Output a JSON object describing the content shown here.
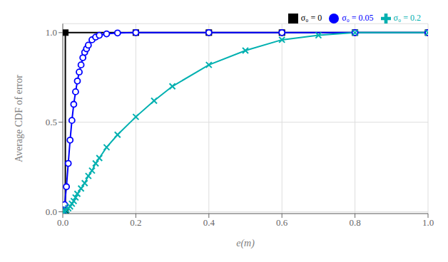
{
  "chart_data": {
    "type": "line",
    "xlabel": "e(m)",
    "ylabel": "Average CDF of error",
    "xlim": [
      0,
      1
    ],
    "ylim": [
      -0.01,
      1.05
    ],
    "xticks": [
      {
        "value": 0,
        "label": "0.0"
      },
      0.2,
      0.4,
      0.6,
      0.8,
      {
        "value": 1.0,
        "label": "1.0"
      }
    ],
    "yticks": [
      {
        "value": 0,
        "label": "0.0"
      },
      0.5,
      {
        "value": 1,
        "label": "1.0"
      }
    ],
    "grid": true,
    "legend": "upper right",
    "series": [
      {
        "name": "σ₀ = 0",
        "color": "#000000",
        "marker": "square",
        "x": [
          0.0,
          0.007,
          0.007,
          0.2,
          0.4,
          0.6,
          0.8,
          1.0
        ],
        "values": [
          0.0,
          0.0,
          1.0,
          1.0,
          1.0,
          1.0,
          1.0,
          1.0
        ]
      },
      {
        "name": "σ₀ = 0.05",
        "color": "#0000ff",
        "marker": "circle",
        "x": [
          0.0,
          0.005,
          0.01,
          0.015,
          0.02,
          0.025,
          0.03,
          0.035,
          0.04,
          0.045,
          0.05,
          0.055,
          0.06,
          0.065,
          0.07,
          0.08,
          0.09,
          0.1,
          0.12,
          0.15,
          0.2,
          0.4,
          0.6,
          0.8,
          1.0
        ],
        "values": [
          0.0,
          0.04,
          0.14,
          0.27,
          0.4,
          0.51,
          0.6,
          0.67,
          0.73,
          0.78,
          0.82,
          0.86,
          0.89,
          0.91,
          0.93,
          0.96,
          0.975,
          0.985,
          0.993,
          0.998,
          1.0,
          1.0,
          1.0,
          1.0,
          1.0
        ]
      },
      {
        "name": "σ₀ = 0.2",
        "color": "#00b0b0",
        "marker": "cross",
        "x": [
          0.0,
          0.005,
          0.01,
          0.015,
          0.02,
          0.025,
          0.03,
          0.035,
          0.04,
          0.05,
          0.06,
          0.07,
          0.08,
          0.09,
          0.1,
          0.12,
          0.15,
          0.2,
          0.25,
          0.3,
          0.4,
          0.5,
          0.6,
          0.7,
          0.8,
          1.0
        ],
        "values": [
          0.0,
          0.005,
          0.01,
          0.02,
          0.03,
          0.045,
          0.06,
          0.08,
          0.1,
          0.13,
          0.16,
          0.2,
          0.23,
          0.27,
          0.3,
          0.36,
          0.43,
          0.53,
          0.62,
          0.7,
          0.82,
          0.9,
          0.96,
          0.985,
          1.0,
          1.0
        ]
      }
    ]
  }
}
